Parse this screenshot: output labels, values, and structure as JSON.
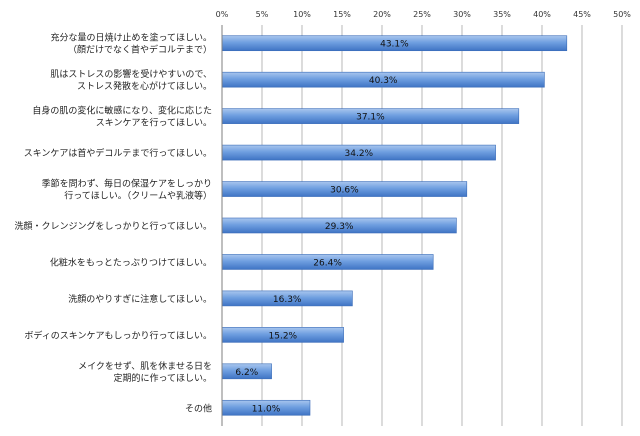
{
  "chart_data": {
    "type": "bar",
    "orientation": "horizontal",
    "title": "",
    "xlabel": "",
    "ylabel": "",
    "xlim": [
      0,
      50
    ],
    "x_ticks": [
      "0%",
      "5%",
      "10%",
      "15%",
      "20%",
      "25%",
      "30%",
      "35%",
      "40%",
      "45%",
      "50%"
    ],
    "x_axis_position": "top",
    "grid": "vertical",
    "legend": "none",
    "bar_color": "#5b8fd6",
    "categories": [
      [
        "充分な量の日焼け止めを塗ってほしい。",
        "（顔だけでなく首やデコルテまで）"
      ],
      [
        "肌はストレスの影響を受けやすいので、",
        "ストレス発散を心がけてほしい。"
      ],
      [
        "自身の肌の変化に敏感になり、変化に応じた",
        "スキンケアを行ってほしい。"
      ],
      [
        "スキンケアは首やデコルテまで行ってほしい。"
      ],
      [
        "季節を問わず、毎日の保湿ケアをしっかり",
        "行ってほしい。（クリームや乳液等）"
      ],
      [
        "洗顔・クレンジングをしっかりと行ってほしい。"
      ],
      [
        "化粧水をもっとたっぷりつけてほしい。"
      ],
      [
        "洗顔のやりすぎに注意してほしい。"
      ],
      [
        "ボディのスキンケアもしっかり行ってほしい。"
      ],
      [
        "メイクをせず、肌を休ませる日を",
        "定期的に作ってほしい。"
      ],
      [
        "その他"
      ]
    ],
    "values": [
      43.1,
      40.3,
      37.1,
      34.2,
      30.6,
      29.3,
      26.4,
      16.3,
      15.2,
      6.2,
      11.0
    ],
    "data_labels": [
      "43.1%",
      "40.3%",
      "37.1%",
      "34.2%",
      "30.6%",
      "29.3%",
      "26.4%",
      "16.3%",
      "15.2%",
      "6.2%",
      "11.0%"
    ]
  }
}
